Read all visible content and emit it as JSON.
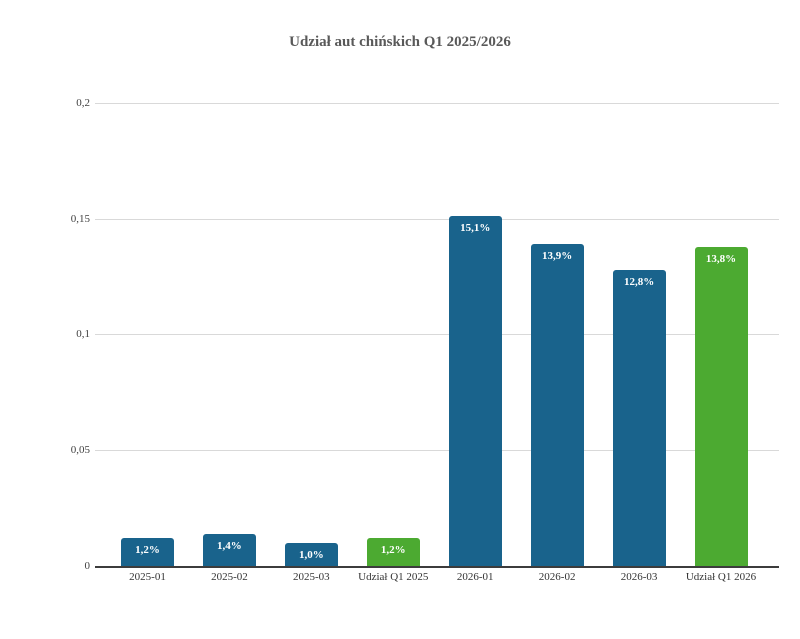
{
  "title": "Udział aut chińskich Q1 2025/2026",
  "chart_data": {
    "type": "bar",
    "title": "Udział aut chińskich Q1 2025/2026",
    "categories": [
      "2025-01",
      "2025-02",
      "2025-03",
      "Udział Q1 2025",
      "2026-01",
      "2026-02",
      "2026-03",
      "Udział Q1 2026"
    ],
    "values": [
      0.012,
      0.014,
      0.01,
      0.012,
      0.151,
      0.139,
      0.128,
      0.138
    ],
    "value_labels": [
      "1,2%",
      "1,4%",
      "1,0%",
      "1,2%",
      "15,1%",
      "13,9%",
      "12,8%",
      "13,8%"
    ],
    "bar_colors": [
      "#19638c",
      "#19638c",
      "#19638c",
      "#4caa31",
      "#19638c",
      "#19638c",
      "#19638c",
      "#4caa31"
    ],
    "xlabel": "",
    "ylabel": "",
    "ylim": [
      0,
      0.2
    ],
    "y_ticks": {
      "values": [
        0,
        0.05,
        0.1,
        0.15,
        0.2
      ],
      "labels": [
        "0",
        "0,05",
        "0,1",
        "0,15",
        "0,2"
      ]
    },
    "grid": true,
    "legend_position": "none",
    "colors": {
      "series_blue": "#19638c",
      "series_green": "#4caa31",
      "gridline": "#d9d9d9",
      "axis_line": "#3c3c3c",
      "title_text": "#595959",
      "tick_text": "#404040",
      "value_label_text": "#ffffff",
      "background": "#ffffff"
    }
  }
}
